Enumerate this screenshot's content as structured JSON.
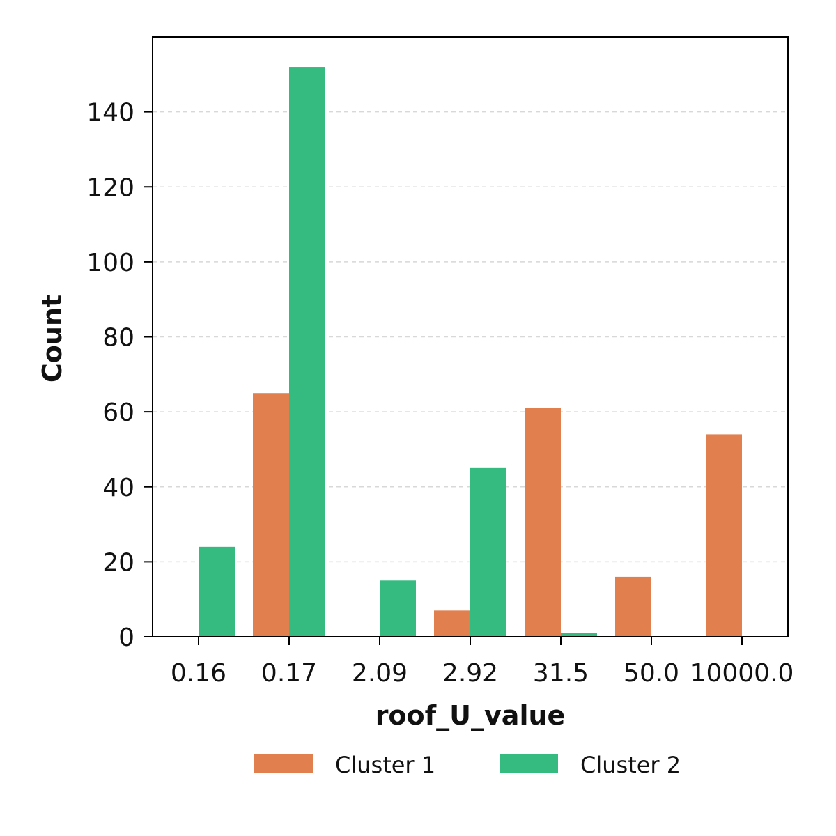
{
  "chart_data": {
    "type": "bar",
    "xlabel": "roof_U_value",
    "ylabel": "Count",
    "categories": [
      "0.16",
      "0.17",
      "2.09",
      "2.92",
      "31.5",
      "50.0",
      "10000.0"
    ],
    "series": [
      {
        "name": "Cluster 1",
        "color": "#E17F4F",
        "values": [
          0,
          65,
          0,
          7,
          61,
          16,
          54
        ]
      },
      {
        "name": "Cluster 2",
        "color": "#35BB80",
        "values": [
          24,
          152,
          15,
          45,
          1,
          0,
          0
        ]
      }
    ],
    "ylim": [
      0,
      160
    ],
    "yticks": [
      0,
      20,
      40,
      60,
      80,
      100,
      120,
      140
    ],
    "grid": "y-dashed",
    "legend": "bottom-center"
  }
}
